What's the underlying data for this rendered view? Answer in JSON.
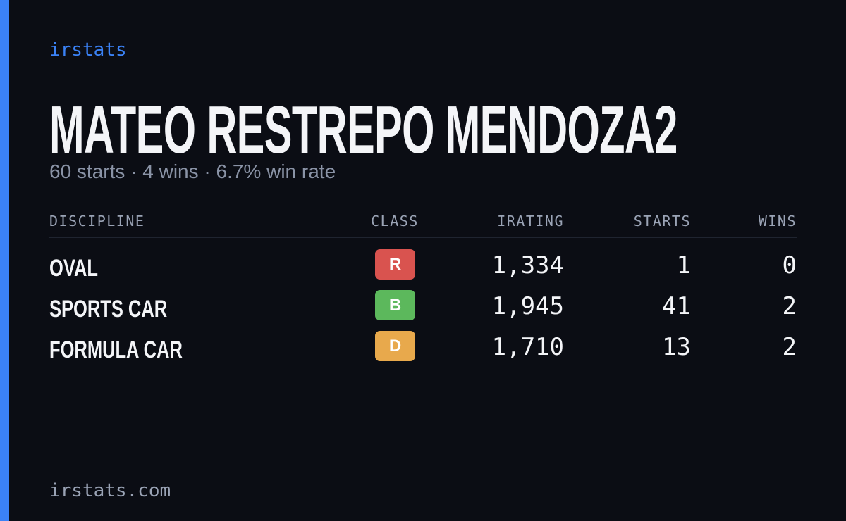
{
  "brand": "irstats",
  "title": "MATEO RESTREPO MENDOZA2",
  "subtitle": "60 starts · 4 wins · 6.7% win rate",
  "table": {
    "headers": [
      "DISCIPLINE",
      "CLASS",
      "IRATING",
      "STARTS",
      "WINS"
    ],
    "rows": [
      [
        "OVAL",
        "R",
        "1,334",
        "1",
        "0"
      ],
      [
        "SPORTS CAR",
        "B",
        "1,945",
        "41",
        "2"
      ],
      [
        "FORMULA CAR",
        "D",
        "1,710",
        "13",
        "2"
      ]
    ],
    "class_colors": [
      "#d9534f",
      "#5cb85c",
      "#e8a94c"
    ]
  },
  "footer": "irstats.com"
}
